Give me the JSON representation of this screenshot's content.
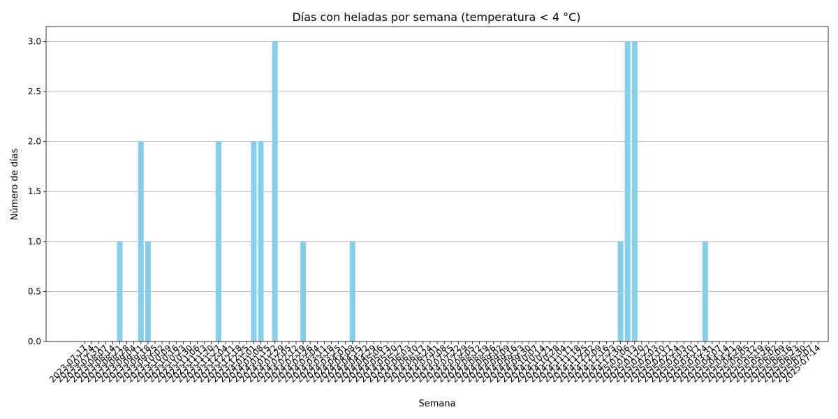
{
  "chart_data": {
    "type": "bar",
    "title": "Días con heladas por semana (temperatura < 4 °C)",
    "xlabel": "Semana",
    "ylabel": "Número de días",
    "ylim": [
      0,
      3.15
    ],
    "yticks": [
      "0.0",
      "0.5",
      "1.0",
      "1.5",
      "2.0",
      "2.5",
      "3.0"
    ],
    "grid": "horizontal",
    "bar_color": "#87ceeb",
    "categories": [
      "2023-07-17",
      "2023-07-24",
      "2023-07-31",
      "2023-08-07",
      "2023-08-14",
      "2023-08-21",
      "2023-08-28",
      "2023-09-04",
      "2023-09-11",
      "2023-09-18",
      "2023-09-25",
      "2023-10-02",
      "2023-10-09",
      "2023-10-16",
      "2023-10-23",
      "2023-10-30",
      "2023-11-06",
      "2023-11-13",
      "2023-11-20",
      "2023-11-27",
      "2023-12-04",
      "2023-12-11",
      "2023-12-18",
      "2023-12-25",
      "2024-01-01",
      "2024-01-08",
      "2024-01-15",
      "2024-01-22",
      "2024-01-29",
      "2024-02-05",
      "2024-02-12",
      "2024-02-19",
      "2024-02-26",
      "2024-03-04",
      "2024-03-11",
      "2024-03-18",
      "2024-03-25",
      "2024-04-01",
      "2024-04-08",
      "2024-04-15",
      "2024-04-22",
      "2024-04-29",
      "2024-05-06",
      "2024-05-13",
      "2024-05-20",
      "2024-05-27",
      "2024-06-03",
      "2024-06-10",
      "2024-06-17",
      "2024-06-24",
      "2024-07-01",
      "2024-07-08",
      "2024-07-15",
      "2024-07-22",
      "2024-07-29",
      "2024-08-05",
      "2024-08-12",
      "2024-08-19",
      "2024-08-26",
      "2024-09-02",
      "2024-09-09",
      "2024-09-16",
      "2024-09-23",
      "2024-09-30",
      "2024-10-07",
      "2024-10-14",
      "2024-10-21",
      "2024-10-28",
      "2024-11-04",
      "2024-11-11",
      "2024-11-18",
      "2024-11-25",
      "2024-12-02",
      "2024-12-09",
      "2024-12-16",
      "2024-12-23",
      "2024-12-30",
      "2025-01-06",
      "2025-01-13",
      "2025-01-20",
      "2025-01-27",
      "2025-02-03",
      "2025-02-10",
      "2025-02-17",
      "2025-02-24",
      "2025-03-03",
      "2025-03-10",
      "2025-03-17",
      "2025-03-24",
      "2025-03-31",
      "2025-04-07",
      "2025-04-14",
      "2025-04-21",
      "2025-04-28",
      "2025-05-05",
      "2025-05-12",
      "2025-05-19",
      "2025-05-26",
      "2025-06-02",
      "2025-06-09",
      "2025-06-16",
      "2025-06-23",
      "2025-06-30",
      "2025-07-07",
      "2025-07-14"
    ],
    "values": [
      0,
      0,
      0,
      0,
      0,
      1,
      0,
      0,
      2,
      1,
      0,
      0,
      0,
      0,
      0,
      0,
      0,
      0,
      0,
      2,
      0,
      0,
      0,
      0,
      2,
      2,
      0,
      3,
      0,
      0,
      0,
      1,
      0,
      0,
      0,
      0,
      0,
      0,
      1,
      0,
      0,
      0,
      0,
      0,
      0,
      0,
      0,
      0,
      0,
      0,
      0,
      0,
      0,
      0,
      0,
      0,
      0,
      0,
      0,
      0,
      0,
      0,
      0,
      0,
      0,
      0,
      0,
      0,
      0,
      0,
      0,
      0,
      0,
      0,
      0,
      0,
      1,
      3,
      3,
      0,
      0,
      0,
      0,
      0,
      0,
      0,
      0,
      0,
      1,
      0,
      0,
      0,
      0,
      0,
      0,
      0,
      0,
      0,
      0,
      0,
      0,
      0,
      0,
      0,
      0
    ]
  }
}
